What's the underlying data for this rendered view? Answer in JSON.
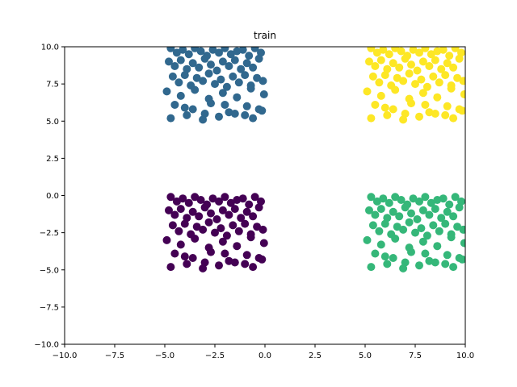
{
  "chart_data": {
    "type": "scatter",
    "title": "train",
    "xlabel": "",
    "ylabel": "",
    "xlim": [
      -10,
      10
    ],
    "ylim": [
      -10,
      10
    ],
    "xticks": [
      -10,
      -7.5,
      -5,
      -2.5,
      0,
      2.5,
      5,
      7.5,
      10
    ],
    "yticks": [
      -10,
      -7.5,
      -5,
      -2.5,
      0,
      2.5,
      5,
      7.5,
      10
    ],
    "xtick_labels": [
      "−10.0",
      "−7.5",
      "−5.0",
      "−2.5",
      "0.0",
      "2.5",
      "5.0",
      "7.5",
      "10.0"
    ],
    "ytick_labels": [
      "−10.0",
      "−7.5",
      "−5.0",
      "−2.5",
      "0.0",
      "2.5",
      "5.0",
      "7.5",
      "10.0"
    ],
    "grid": false,
    "series": [
      {
        "color": "#440154",
        "x": [
          -4.7,
          -4.4,
          -4.1,
          -3.8,
          -3.5,
          -3.2,
          -2.9,
          -2.6,
          -2.3,
          -2.0,
          -1.7,
          -1.4,
          -1.1,
          -0.8,
          -0.5,
          -0.2,
          -4.8,
          -4.5,
          -4.2,
          -3.9,
          -3.6,
          -3.3,
          -3.0,
          -2.7,
          -2.4,
          -2.1,
          -1.8,
          -1.5,
          -1.2,
          -0.9,
          -0.6,
          -0.3,
          -4.6,
          -4.3,
          -4.0,
          -3.7,
          -3.4,
          -3.1,
          -2.8,
          -2.5,
          -2.2,
          -1.9,
          -1.6,
          -1.3,
          -1.0,
          -0.7,
          -0.4,
          -0.1,
          -4.9,
          -4.2,
          -3.5,
          -2.8,
          -2.1,
          -1.4,
          -0.7,
          -0.05,
          -4.5,
          -3.6,
          -2.7,
          -1.8,
          -0.9,
          -0.15,
          -4.0,
          -3.0,
          -2.0,
          -1.0,
          -0.3,
          -4.7,
          -3.9,
          -3.1,
          -2.3,
          -1.5,
          -0.6
        ],
        "y": [
          -0.1,
          -0.4,
          -0.2,
          -0.5,
          -0.1,
          -0.3,
          -0.6,
          -0.2,
          -0.4,
          -0.1,
          -0.5,
          -0.3,
          -0.2,
          -0.6,
          -0.1,
          -0.4,
          -1.0,
          -1.3,
          -0.9,
          -1.5,
          -1.1,
          -1.4,
          -0.8,
          -1.2,
          -1.6,
          -1.0,
          -1.3,
          -0.9,
          -1.5,
          -1.1,
          -1.4,
          -0.8,
          -2.0,
          -2.4,
          -1.9,
          -2.6,
          -2.1,
          -2.3,
          -1.8,
          -2.5,
          -2.2,
          -2.7,
          -2.0,
          -2.4,
          -1.9,
          -2.6,
          -2.1,
          -2.3,
          -3.0,
          -3.3,
          -2.9,
          -3.5,
          -3.1,
          -3.4,
          -2.8,
          -3.2,
          -3.9,
          -4.2,
          -3.8,
          -4.4,
          -4.0,
          -4.3,
          -4.1,
          -4.5,
          -3.9,
          -4.6,
          -4.2,
          -4.8,
          -4.6,
          -4.9,
          -4.7,
          -4.5,
          -4.8
        ]
      },
      {
        "color": "#31688e",
        "x": [
          -4.7,
          -4.4,
          -4.1,
          -3.8,
          -3.5,
          -3.2,
          -2.9,
          -2.6,
          -2.3,
          -2.0,
          -1.7,
          -1.4,
          -1.1,
          -0.8,
          -0.5,
          -0.2,
          -4.8,
          -4.5,
          -4.2,
          -3.9,
          -3.6,
          -3.3,
          -3.0,
          -2.7,
          -2.4,
          -2.1,
          -1.8,
          -1.5,
          -1.2,
          -0.9,
          -0.6,
          -0.3,
          -4.6,
          -4.3,
          -4.0,
          -3.7,
          -3.4,
          -3.1,
          -2.8,
          -2.5,
          -2.2,
          -1.9,
          -1.6,
          -1.3,
          -1.0,
          -0.7,
          -0.4,
          -0.1,
          -4.9,
          -4.2,
          -3.5,
          -2.8,
          -2.1,
          -1.4,
          -0.7,
          -0.05,
          -4.5,
          -3.6,
          -2.7,
          -1.8,
          -0.9,
          -0.15,
          -4.0,
          -3.0,
          -2.0,
          -1.0,
          -0.3,
          -4.7,
          -3.9,
          -3.1,
          -2.3,
          -1.5,
          -0.6
        ],
        "y": [
          9.9,
          9.6,
          9.8,
          9.5,
          9.9,
          9.7,
          9.4,
          9.8,
          9.6,
          9.9,
          9.5,
          9.7,
          9.8,
          9.4,
          9.9,
          9.6,
          9.0,
          8.7,
          9.1,
          8.5,
          8.9,
          8.6,
          9.2,
          8.8,
          8.4,
          9.0,
          8.7,
          9.1,
          8.5,
          8.9,
          8.6,
          9.2,
          8.0,
          7.6,
          8.1,
          7.4,
          7.9,
          7.7,
          8.2,
          7.5,
          7.8,
          7.3,
          8.0,
          7.6,
          8.1,
          7.4,
          7.9,
          7.7,
          7.0,
          6.7,
          7.1,
          6.5,
          6.9,
          6.6,
          7.2,
          6.8,
          6.1,
          5.8,
          6.2,
          5.6,
          6.0,
          5.7,
          5.9,
          5.5,
          6.1,
          5.4,
          5.8,
          5.2,
          5.4,
          5.1,
          5.3,
          5.5,
          5.2
        ]
      },
      {
        "color": "#35b779",
        "x": [
          5.3,
          5.6,
          5.9,
          6.2,
          6.5,
          6.8,
          7.1,
          7.4,
          7.7,
          8.0,
          8.3,
          8.6,
          8.9,
          9.2,
          9.5,
          9.8,
          5.2,
          5.5,
          5.8,
          6.1,
          6.4,
          6.7,
          7.0,
          7.3,
          7.6,
          7.9,
          8.2,
          8.5,
          8.8,
          9.1,
          9.4,
          9.7,
          5.4,
          5.7,
          6.0,
          6.3,
          6.6,
          6.9,
          7.2,
          7.5,
          7.8,
          8.1,
          8.4,
          8.7,
          9.0,
          9.3,
          9.6,
          9.9,
          5.1,
          5.8,
          6.5,
          7.2,
          7.9,
          8.6,
          9.3,
          9.95,
          5.5,
          6.4,
          7.3,
          8.2,
          9.1,
          9.85,
          6.0,
          7.0,
          8.0,
          9.0,
          9.7,
          5.3,
          6.1,
          6.9,
          7.7,
          8.5,
          9.4
        ],
        "y": [
          -0.1,
          -0.4,
          -0.2,
          -0.5,
          -0.1,
          -0.3,
          -0.6,
          -0.2,
          -0.4,
          -0.1,
          -0.5,
          -0.3,
          -0.2,
          -0.6,
          -0.1,
          -0.4,
          -1.0,
          -1.3,
          -0.9,
          -1.5,
          -1.1,
          -1.4,
          -0.8,
          -1.2,
          -1.6,
          -1.0,
          -1.3,
          -0.9,
          -1.5,
          -1.1,
          -1.4,
          -0.8,
          -2.0,
          -2.4,
          -1.9,
          -2.6,
          -2.1,
          -2.3,
          -1.8,
          -2.5,
          -2.2,
          -2.7,
          -2.0,
          -2.4,
          -1.9,
          -2.6,
          -2.1,
          -2.3,
          -3.0,
          -3.3,
          -2.9,
          -3.5,
          -3.1,
          -3.4,
          -2.8,
          -3.2,
          -3.9,
          -4.2,
          -3.8,
          -4.4,
          -4.0,
          -4.3,
          -4.1,
          -4.5,
          -3.9,
          -4.6,
          -4.2,
          -4.8,
          -4.6,
          -4.9,
          -4.7,
          -4.5,
          -4.8
        ]
      },
      {
        "color": "#fde725",
        "x": [
          5.3,
          5.6,
          5.9,
          6.2,
          6.5,
          6.8,
          7.1,
          7.4,
          7.7,
          8.0,
          8.3,
          8.6,
          8.9,
          9.2,
          9.5,
          9.8,
          5.2,
          5.5,
          5.8,
          6.1,
          6.4,
          6.7,
          7.0,
          7.3,
          7.6,
          7.9,
          8.2,
          8.5,
          8.8,
          9.1,
          9.4,
          9.7,
          5.4,
          5.7,
          6.0,
          6.3,
          6.6,
          6.9,
          7.2,
          7.5,
          7.8,
          8.1,
          8.4,
          8.7,
          9.0,
          9.3,
          9.6,
          9.9,
          5.1,
          5.8,
          6.5,
          7.2,
          7.9,
          8.6,
          9.3,
          9.95,
          5.5,
          6.4,
          7.3,
          8.2,
          9.1,
          9.85,
          6.0,
          7.0,
          8.0,
          9.0,
          9.7,
          5.3,
          6.1,
          6.9,
          7.7,
          8.5,
          9.4
        ],
        "y": [
          9.9,
          9.6,
          9.8,
          9.5,
          9.9,
          9.7,
          9.4,
          9.8,
          9.6,
          9.9,
          9.5,
          9.7,
          9.8,
          9.4,
          9.9,
          9.6,
          9.0,
          8.7,
          9.1,
          8.5,
          8.9,
          8.6,
          9.2,
          8.8,
          8.4,
          9.0,
          8.7,
          9.1,
          8.5,
          8.9,
          8.6,
          9.2,
          8.0,
          7.6,
          8.1,
          7.4,
          7.9,
          7.7,
          8.2,
          7.5,
          7.8,
          7.3,
          8.0,
          7.6,
          8.1,
          7.4,
          7.9,
          7.7,
          7.0,
          6.7,
          7.1,
          6.5,
          6.9,
          6.6,
          7.2,
          6.8,
          6.1,
          5.8,
          6.2,
          5.6,
          6.0,
          5.7,
          5.9,
          5.5,
          6.1,
          5.4,
          5.8,
          5.2,
          5.4,
          5.1,
          5.3,
          5.5,
          5.2
        ]
      }
    ]
  }
}
